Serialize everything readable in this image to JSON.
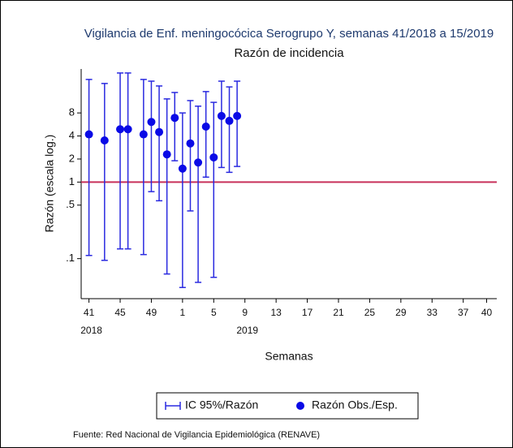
{
  "chart_data": {
    "type": "errorbar",
    "title": "Vigilancia de Enf. meningocócica Serogrupo Y, semanas 41/2018 a 15/2019",
    "subtitle": "Razón de incidencia",
    "x_label": "Semanas",
    "y_label": "Razón (escala log.)",
    "source": "Fuente: Red Nacional de Vigilancia Epidemiológica (RENAVE)",
    "x": [
      0,
      2,
      4,
      5,
      7,
      8,
      9,
      10,
      11,
      12,
      13,
      14,
      15,
      16,
      17,
      18,
      19
    ],
    "series": [
      {
        "name": "Razón Obs./Esp.",
        "color": "#0a0ae6",
        "values": [
          4.2,
          3.5,
          4.9,
          4.9,
          4.2,
          6.1,
          4.5,
          2.3,
          6.9,
          1.5,
          3.2,
          1.8,
          5.3,
          2.1,
          7.3,
          6.3,
          7.3
        ]
      }
    ],
    "intervals": {
      "name": "IC 95%/Razón",
      "color": "#2a2ae0",
      "lower": [
        0.11,
        0.095,
        0.134,
        0.134,
        0.113,
        0.75,
        0.57,
        0.063,
        1.9,
        0.042,
        0.42,
        0.049,
        1.16,
        0.057,
        1.55,
        1.34,
        1.6
      ],
      "upper": [
        21.9,
        19.4,
        26.6,
        26.6,
        21.9,
        20.8,
        18,
        12.2,
        14.8,
        8,
        11.6,
        9.8,
        15.2,
        11,
        20.8,
        17.5,
        20.8
      ]
    },
    "reference_line": {
      "value": 1,
      "color": "#c8305a"
    },
    "xlim": [
      -1,
      52.3
    ],
    "xticks": [
      {
        "value": 0,
        "label": "41"
      },
      {
        "value": 4,
        "label": "45"
      },
      {
        "value": 8,
        "label": "49"
      },
      {
        "value": 12,
        "label": "1"
      },
      {
        "value": 16,
        "label": "5"
      },
      {
        "value": 20,
        "label": "9"
      },
      {
        "value": 24,
        "label": "13"
      },
      {
        "value": 28,
        "label": "17"
      },
      {
        "value": 32,
        "label": "21"
      },
      {
        "value": 36,
        "label": "25"
      },
      {
        "value": 40,
        "label": "29"
      },
      {
        "value": 44,
        "label": "33"
      },
      {
        "value": 48,
        "label": "37"
      },
      {
        "value": 51,
        "label": "40"
      }
    ],
    "year_labels": [
      {
        "value": 0,
        "label": "2018"
      },
      {
        "value": 20,
        "label": "2019"
      }
    ],
    "ylim": [
      0.03,
      30
    ],
    "yscale": "log",
    "yticks": [
      {
        "value": 0.1,
        "label": ".1"
      },
      {
        "value": 0.5,
        "label": ".5"
      },
      1,
      2,
      4,
      8
    ]
  }
}
